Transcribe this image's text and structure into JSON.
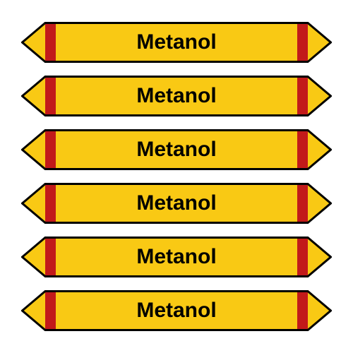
{
  "labels": [
    {
      "text": "Metanol"
    },
    {
      "text": "Metanol"
    },
    {
      "text": "Metanol"
    },
    {
      "text": "Metanol"
    },
    {
      "text": "Metanol"
    },
    {
      "text": "Metanol"
    }
  ],
  "style": {
    "type": "double-arrow-pipe-marker",
    "count": 6,
    "background_color": "#ffffff",
    "label_width": 440,
    "label_height": 58,
    "arrow_tip_width": 34,
    "red_band_width": 15,
    "fill_color": "#f9c914",
    "band_color": "#c21a1a",
    "stroke_color": "#000000",
    "stroke_width": 3,
    "text_color": "#000000",
    "font_size": 30,
    "font_weight": "bold",
    "font_family": "Arial",
    "vertical_gap": 18
  }
}
